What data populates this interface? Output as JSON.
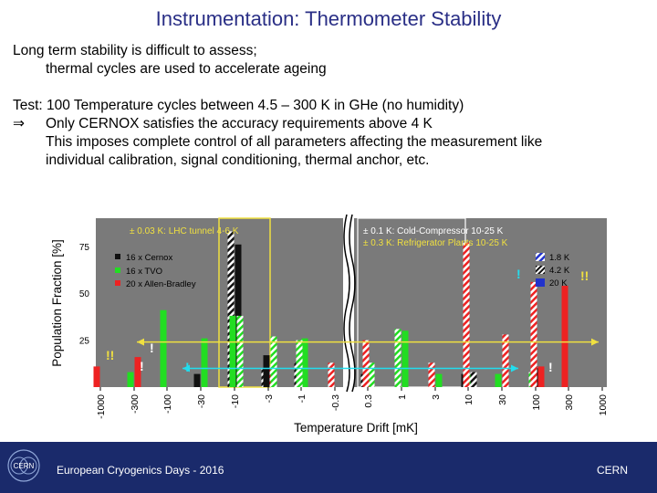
{
  "slide": {
    "title": "Instrumentation: Thermometer Stability",
    "line1": "Long term stability is difficult to assess;",
    "line2": "thermal cycles are used to accelerate ageing",
    "line3": "Test: 100 Temperature cycles between 4.5 – 300 K in GHe (no humidity)",
    "arrow_symbol": "⇒",
    "line4": "Only CERNOX satisfies the accuracy requirements above 4 K",
    "line5": "This imposes complete control of all parameters affecting the measurement like",
    "line6": "individual calibration, signal conditioning, thermal anchor, etc."
  },
  "footer": {
    "event": "European Cryogenics Days - 2016",
    "org": "CERN",
    "logo_text": "CERN"
  },
  "colors": {
    "title": "#2a2f86",
    "footer_bg": "#1a2a6b",
    "cernox": "#111111",
    "tvo": "#22dd22",
    "allen_bradley": "#ee2222",
    "bar_1_8K": "#2233cc",
    "plot_bg": "#7a7a7a",
    "tolerance_lhc": "#f0e040",
    "tolerance_cold": "#ffffff",
    "tolerance_ref": "#f0e040",
    "drift_arrow_yellow": "#f0e040",
    "drift_arrow_cyan": "#22ddee"
  },
  "chart_data": {
    "type": "bar",
    "xlabel": "Temperature Drift [mK]",
    "ylabel": "Population Fraction [%]",
    "ylim": [
      0,
      90
    ],
    "yticks": [
      25,
      50,
      75
    ],
    "xticks": [
      "-1000",
      "-300",
      "-100",
      "-30",
      "-10",
      "-3",
      "-1",
      "-0.3",
      "0.3",
      "1",
      "3",
      "10",
      "30",
      "100",
      "300",
      "1000"
    ],
    "legend_sensors": [
      "16 x Cernox",
      "16 x TVO",
      "20 x Allen-Bradley"
    ],
    "legend_temperatures": [
      "1.8 K",
      "4.2 K",
      "20 K"
    ],
    "annotations": {
      "lhc_tunnel": "± 0.03 K: LHC tunnel 4-6 K",
      "cold_compressor": "± 0.1 K: Cold-Compressor 10-25 K",
      "refrigerator": "± 0.3 K: Refrigerator Plants 10-25 K",
      "warning_single": "!",
      "warning_double": "!!"
    },
    "bars": [
      {
        "bin": 0,
        "sensor": "allen_bradley",
        "temp": "20K",
        "value": 11
      },
      {
        "bin": 1,
        "sensor": "tvo",
        "temp": "20K",
        "value": 8
      },
      {
        "bin": 1,
        "sensor": "allen_bradley",
        "temp": "20K",
        "value": 16
      },
      {
        "bin": 2,
        "sensor": "tvo",
        "temp": "20K",
        "value": 41
      },
      {
        "bin": 3,
        "sensor": "cernox",
        "temp": "20K",
        "value": 7
      },
      {
        "bin": 3,
        "sensor": "tvo",
        "temp": "20K",
        "value": 26
      },
      {
        "bin": 4,
        "sensor": "cernox",
        "temp": "4.2K",
        "value": 83
      },
      {
        "bin": 4,
        "sensor": "cernox",
        "temp": "20K",
        "value": 76
      },
      {
        "bin": 4,
        "sensor": "tvo",
        "temp": "20K",
        "value": 38
      },
      {
        "bin": 4,
        "sensor": "tvo",
        "temp": "4.2K",
        "value": 38
      },
      {
        "bin": 5,
        "sensor": "cernox",
        "temp": "4.2K",
        "value": 10
      },
      {
        "bin": 5,
        "sensor": "allen_bradley",
        "temp": "4.2K",
        "value": 11
      },
      {
        "bin": 5,
        "sensor": "cernox",
        "temp": "20K",
        "value": 17
      },
      {
        "bin": 5,
        "sensor": "tvo",
        "temp": "4.2K",
        "value": 27
      },
      {
        "bin": 6,
        "sensor": "cernox",
        "temp": "4.2K",
        "value": 13
      },
      {
        "bin": 6,
        "sensor": "tvo",
        "temp": "20K",
        "value": 26
      },
      {
        "bin": 6,
        "sensor": "tvo",
        "temp": "4.2K",
        "value": 25
      },
      {
        "bin": 7,
        "sensor": "allen_bradley",
        "temp": "4.2K",
        "value": 13
      },
      {
        "bin": 8,
        "sensor": "cernox",
        "temp": "4.2K",
        "value": 7
      },
      {
        "bin": 8,
        "sensor": "tvo",
        "temp": "4.2K",
        "value": 13
      },
      {
        "bin": 8,
        "sensor": "allen_bradley",
        "temp": "4.2K",
        "value": 25
      },
      {
        "bin": 9,
        "sensor": "tvo",
        "temp": "4.2K",
        "value": 31
      },
      {
        "bin": 9,
        "sensor": "tvo",
        "temp": "20K",
        "value": 30
      },
      {
        "bin": 10,
        "sensor": "allen_bradley",
        "temp": "4.2K",
        "value": 13
      },
      {
        "bin": 10,
        "sensor": "tvo",
        "temp": "20K",
        "value": 7
      },
      {
        "bin": 11,
        "sensor": "cernox",
        "temp": "20K",
        "value": 7
      },
      {
        "bin": 11,
        "sensor": "tvo",
        "temp": "4.2K",
        "value": 7
      },
      {
        "bin": 11,
        "sensor": "allen_bradley",
        "temp": "4.2K",
        "value": 77
      },
      {
        "bin": 11,
        "sensor": "cernox",
        "temp": "4.2K",
        "value": 8
      },
      {
        "bin": 12,
        "sensor": "tvo",
        "temp": "20K",
        "value": 7
      },
      {
        "bin": 12,
        "sensor": "allen_bradley",
        "temp": "4.2K",
        "value": 28
      },
      {
        "bin": 13,
        "sensor": "tvo",
        "temp": "4.2K",
        "value": 8
      },
      {
        "bin": 13,
        "sensor": "cernox",
        "temp": "20K",
        "value": 10
      },
      {
        "bin": 13,
        "sensor": "allen_bradley",
        "temp": "4.2K",
        "value": 56
      },
      {
        "bin": 13,
        "sensor": "allen_bradley",
        "temp": "20K",
        "value": 11
      },
      {
        "bin": 14,
        "sensor": "allen_bradley",
        "temp": "20K",
        "value": 54
      }
    ]
  }
}
